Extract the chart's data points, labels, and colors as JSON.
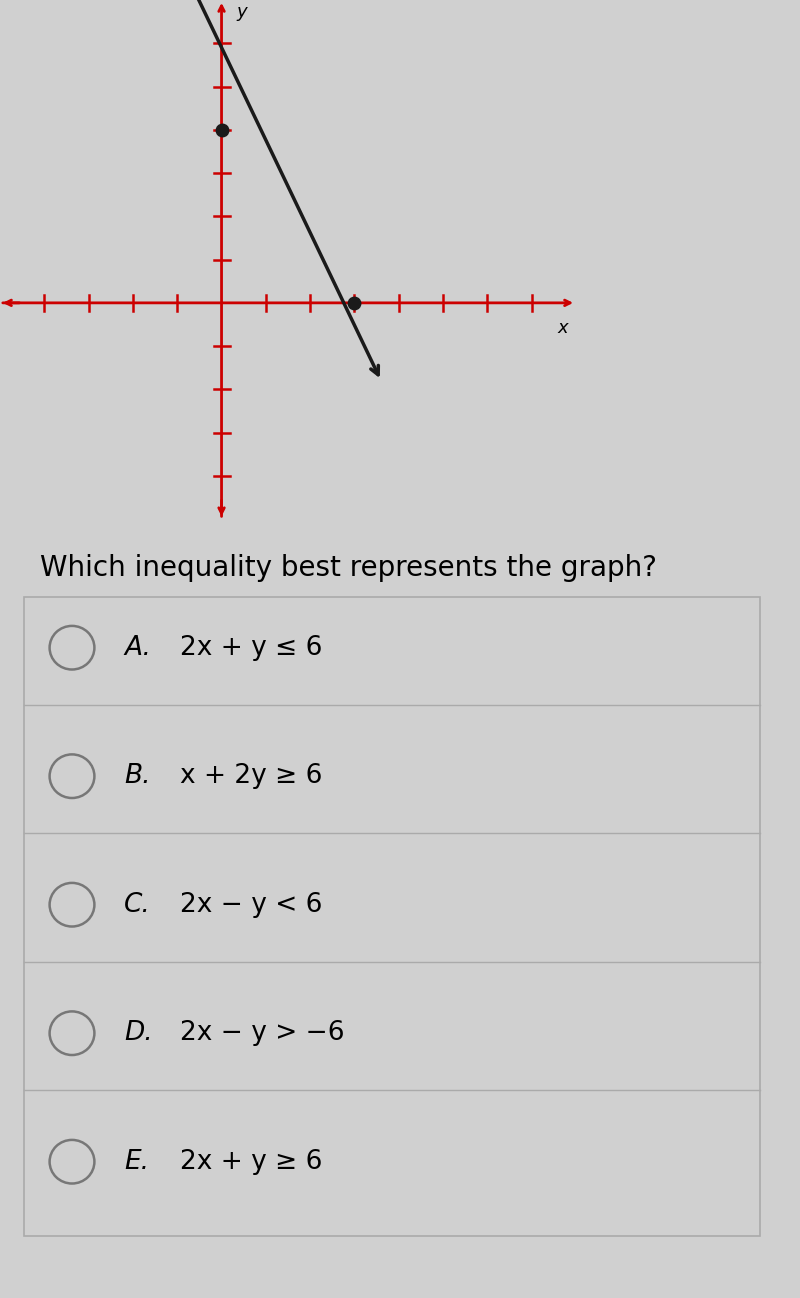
{
  "background_color": "#d0d0d0",
  "graph_bg_color": "#c8c8c8",
  "white_bg_color": "#efefef",
  "question_text": "Which inequality best represents the graph?",
  "options": [
    {
      "label": "A.",
      "text": "2x + y ≤ 6"
    },
    {
      "label": "B.",
      "text": "x + 2y ≥ 6"
    },
    {
      "label": "C.",
      "text": "2x − y < 6"
    },
    {
      "label": "D.",
      "text": "2x − y > −6"
    },
    {
      "label": "E.",
      "text": "2x + y ≥ 6"
    }
  ],
  "axis_color": "#cc0000",
  "line_color": "#1a1a1a",
  "dot_color": "#1a1a1a",
  "x_axis_range": [
    -5,
    8
  ],
  "y_axis_range": [
    -5,
    7
  ],
  "x_ticks": [
    -4,
    -3,
    -2,
    -1,
    1,
    2,
    3,
    4,
    5,
    6,
    7
  ],
  "y_ticks": [
    -4,
    -3,
    -2,
    -1,
    1,
    2,
    3,
    4,
    5,
    6
  ],
  "line_x_start": -0.7,
  "line_y_start": 7.4,
  "line_x_end": 3.6,
  "line_y_end": -1.8,
  "dot1_x": 0,
  "dot1_y": 4,
  "dot2_x": 3,
  "dot2_y": 0,
  "question_fontsize": 20,
  "option_fontsize": 19,
  "separator_color": "#1a7aaa"
}
